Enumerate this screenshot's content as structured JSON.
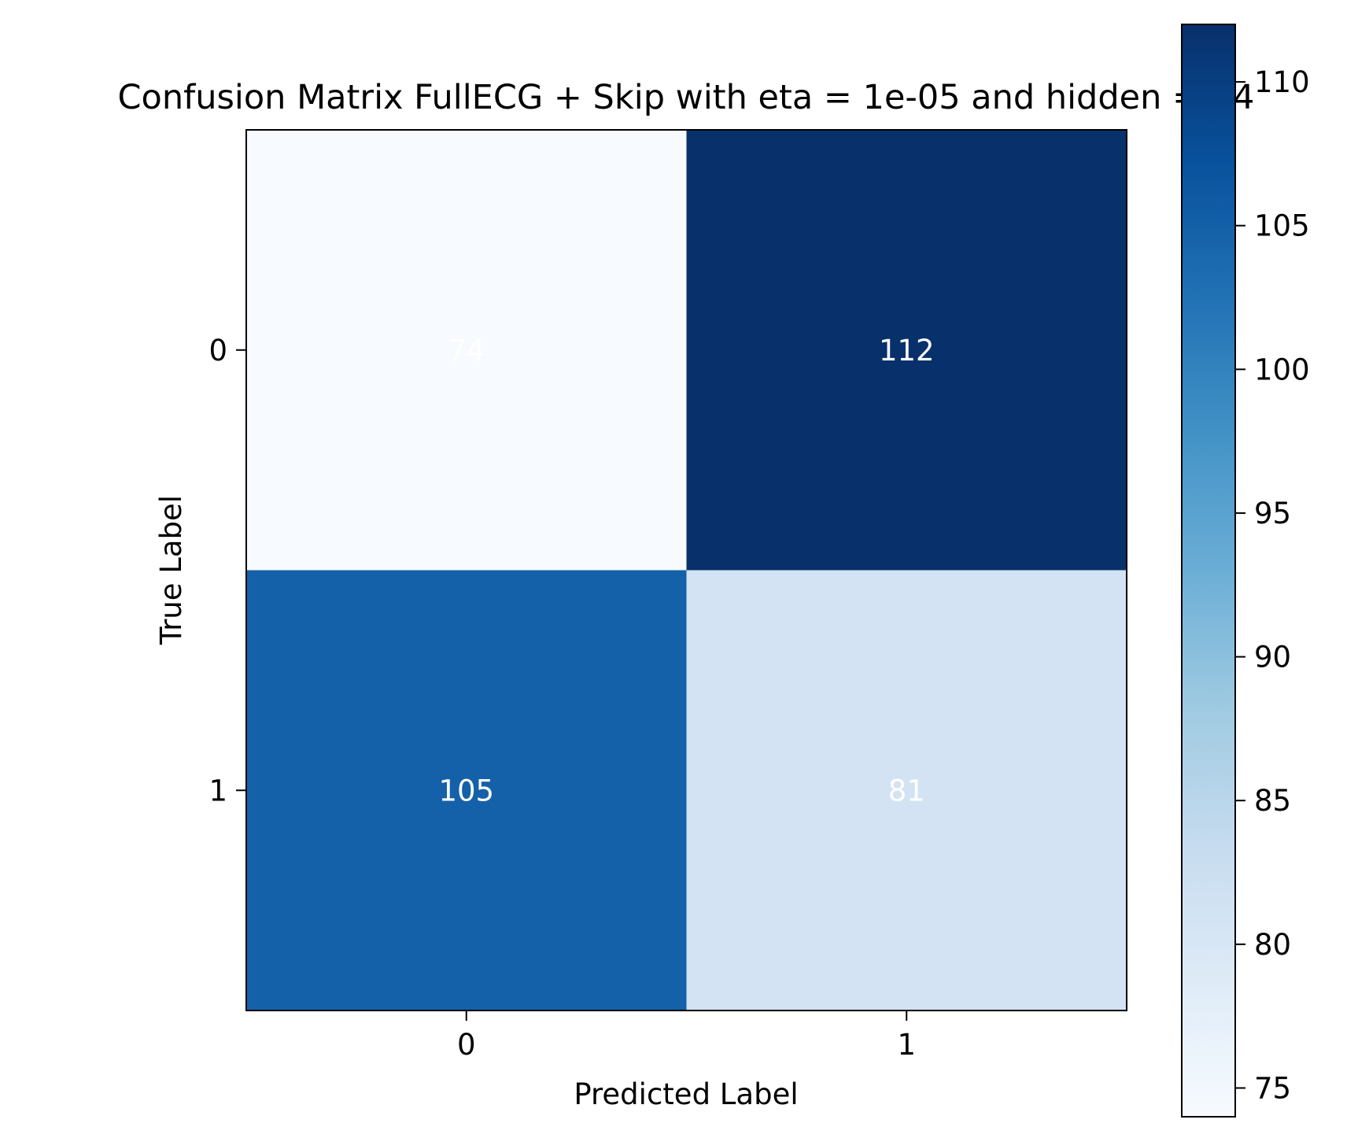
{
  "chart_data": {
    "type": "heatmap",
    "title": "Confusion Matrix FullECG + Skip with eta = 1e-05 and hidden = 64",
    "xlabel": "Predicted Label",
    "ylabel": "True Label",
    "x_categories": [
      "0",
      "1"
    ],
    "y_categories": [
      "0",
      "1"
    ],
    "values": [
      [
        74,
        112
      ],
      [
        105,
        81
      ]
    ],
    "colormap": "Blues",
    "colorbar": {
      "range": [
        74,
        112
      ],
      "ticks": [
        "75",
        "80",
        "85",
        "90",
        "95",
        "100",
        "105",
        "110"
      ]
    },
    "cell_colors": [
      [
        "#f7fbff",
        "#08306b"
      ],
      [
        "#1561a9",
        "#d3e3f3"
      ]
    ],
    "annotation_color": "#ffffff",
    "grid": false
  }
}
